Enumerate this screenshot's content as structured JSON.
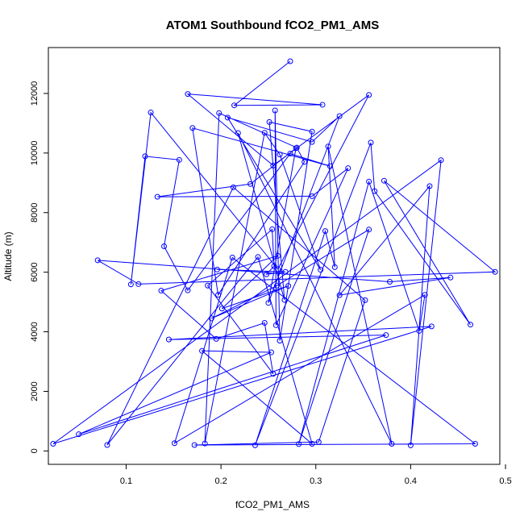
{
  "chart_data": {
    "type": "line",
    "title": "ATOM1 Southbound fCO2_PM1_AMS",
    "xlabel": "fCO2_PM1_AMS",
    "ylabel": "Altitude (m)",
    "xlim": [
      0.018,
      0.494
    ],
    "ylim": [
      -450,
      13540
    ],
    "x_ticks": [
      0.1,
      0.2,
      0.3,
      0.4,
      0.5
    ],
    "x_tick_labels": [
      "0.1",
      "0.2",
      "0.3",
      "0.4",
      "0.5"
    ],
    "y_ticks": [
      0,
      2000,
      4000,
      6000,
      8000,
      10000,
      12000
    ],
    "y_tick_labels": [
      "0",
      "2000",
      "4000",
      "6000",
      "8000",
      "10000",
      "12000"
    ],
    "grid": false,
    "legend": "none",
    "series_color": "#0000ff",
    "marker": "open-circle",
    "series": [
      {
        "name": "",
        "points": [
          [
            0.273,
            13080
          ],
          [
            0.214,
            11600
          ],
          [
            0.307,
            11620
          ],
          [
            0.165,
            11980
          ],
          [
            0.255,
            9580
          ],
          [
            0.356,
            11950
          ],
          [
            0.26,
            6100
          ],
          [
            0.126,
            11360
          ],
          [
            0.105,
            5590
          ],
          [
            0.12,
            9890
          ],
          [
            0.156,
            9770
          ],
          [
            0.14,
            6870
          ],
          [
            0.165,
            5390
          ],
          [
            0.273,
            9980
          ],
          [
            0.315,
            9560
          ],
          [
            0.17,
            10840
          ],
          [
            0.197,
            5240
          ],
          [
            0.288,
            9700
          ],
          [
            0.28,
            10180
          ],
          [
            0.198,
            11340
          ],
          [
            0.183,
            250
          ],
          [
            0.246,
            10680
          ],
          [
            0.262,
            9950
          ],
          [
            0.305,
            6080
          ],
          [
            0.207,
            11190
          ],
          [
            0.296,
            10370
          ],
          [
            0.325,
            11240
          ],
          [
            0.25,
            4970
          ],
          [
            0.279,
            10160
          ],
          [
            0.231,
            8960
          ],
          [
            0.133,
            8530
          ],
          [
            0.296,
            8550
          ],
          [
            0.334,
            9490
          ],
          [
            0.258,
            4220
          ],
          [
            0.257,
            11430
          ],
          [
            0.262,
            3700
          ],
          [
            0.296,
            10720
          ],
          [
            0.251,
            11040
          ],
          [
            0.267,
            5070
          ],
          [
            0.218,
            10670
          ],
          [
            0.38,
            240
          ],
          [
            0.313,
            10220
          ],
          [
            0.32,
            6170
          ],
          [
            0.31,
            7380
          ],
          [
            0.236,
            190
          ],
          [
            0.358,
            10350
          ],
          [
            0.362,
            8720
          ],
          [
            0.463,
            4240
          ],
          [
            0.372,
            9070
          ],
          [
            0.489,
            6010
          ],
          [
            0.113,
            5600
          ],
          [
            0.07,
            6400
          ],
          [
            0.378,
            5680
          ],
          [
            0.442,
            5820
          ],
          [
            0.325,
            5230
          ],
          [
            0.42,
            8890
          ],
          [
            0.4,
            190
          ],
          [
            0.432,
            9760
          ],
          [
            0.023,
            240
          ],
          [
            0.422,
            4180
          ],
          [
            0.145,
            3740
          ],
          [
            0.374,
            3890
          ],
          [
            0.05,
            560
          ],
          [
            0.253,
            3310
          ],
          [
            0.18,
            3360
          ],
          [
            0.296,
            240
          ],
          [
            0.239,
            6510
          ],
          [
            0.08,
            200
          ],
          [
            0.213,
            8850
          ],
          [
            0.352,
            5060
          ],
          [
            0.303,
            300
          ],
          [
            0.172,
            200
          ],
          [
            0.468,
            240
          ],
          [
            0.212,
            6490
          ],
          [
            0.151,
            260
          ],
          [
            0.415,
            5240
          ],
          [
            0.409,
            4030
          ],
          [
            0.356,
            9040
          ],
          [
            0.282,
            230
          ],
          [
            0.356,
            7430
          ],
          [
            0.259,
            5550
          ],
          [
            0.19,
            4450
          ],
          [
            0.271,
            5540
          ],
          [
            0.201,
            4780
          ],
          [
            0.26,
            6550
          ],
          [
            0.137,
            5380
          ],
          [
            0.195,
            3760
          ],
          [
            0.246,
            4300
          ],
          [
            0.255,
            2590
          ],
          [
            0.186,
            5550
          ],
          [
            0.254,
            7440
          ],
          [
            0.256,
            6200
          ],
          [
            0.248,
            5930
          ],
          [
            0.268,
            6010
          ],
          [
            0.196,
            6090
          ]
        ]
      }
    ]
  }
}
